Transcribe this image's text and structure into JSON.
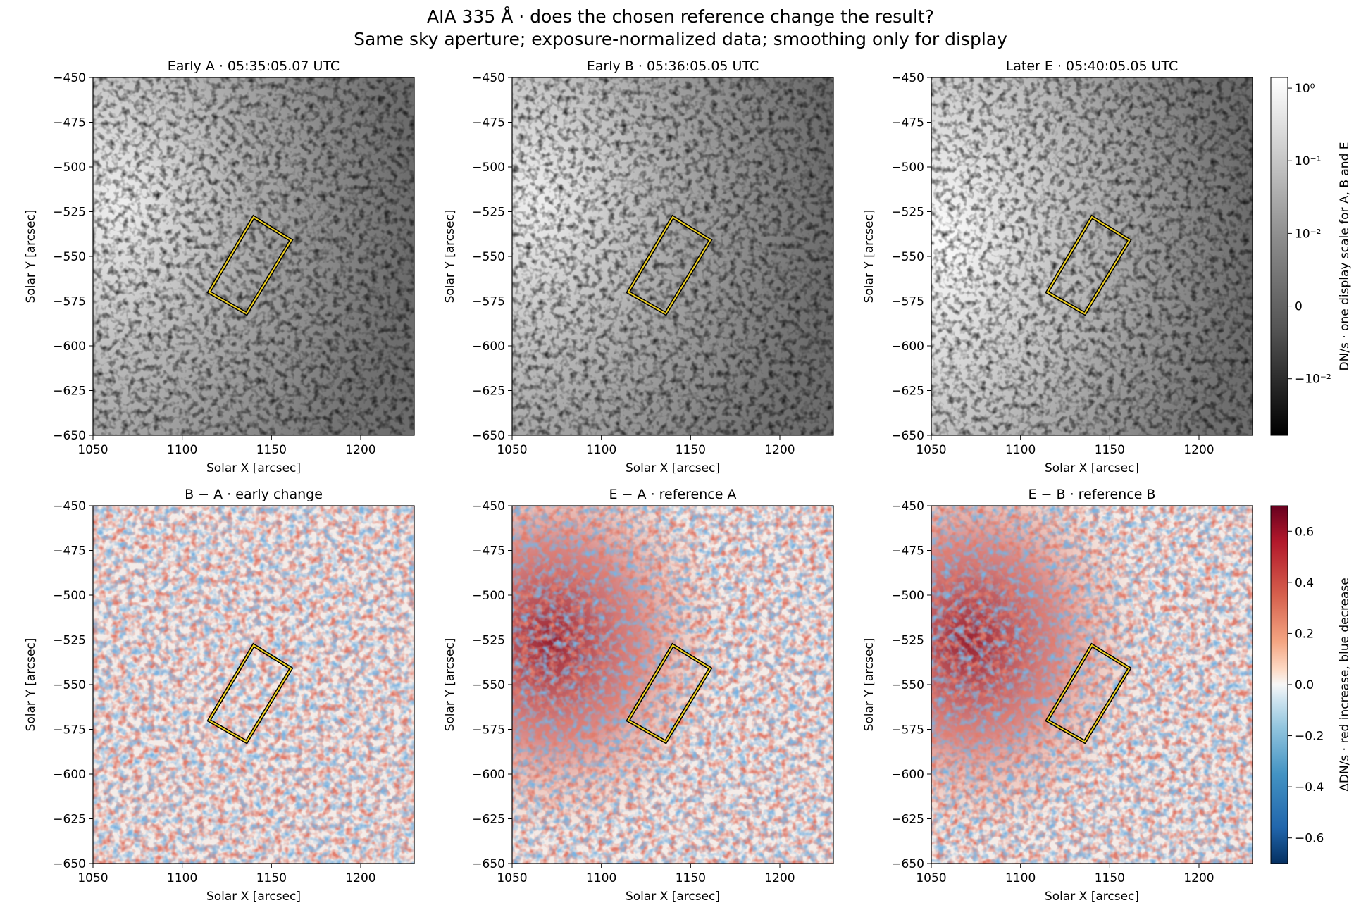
{
  "title_line1": "AIA 335 Å · does the chosen reference change the result?",
  "title_line2": "Same sky aperture; exposure-normalized data; smoothing only for display",
  "chart_data": [
    {
      "type": "heatmap",
      "title": "Early A · 05:35:05.07 UTC",
      "xlabel": "Solar X [arcsec]",
      "ylabel": "Solar Y [arcsec]",
      "xlim": [
        1050,
        1230
      ],
      "ylim": [
        -650,
        -450
      ],
      "xticks": [
        1050,
        1100,
        1150,
        1200
      ],
      "yticks": [
        -450,
        -475,
        -500,
        -525,
        -550,
        -575,
        -600,
        -625,
        -650
      ],
      "colormap": "gray",
      "aperture": [
        [
          1140,
          -528
        ],
        [
          1161,
          -541
        ],
        [
          1136,
          -582
        ],
        [
          1115,
          -570
        ]
      ]
    },
    {
      "type": "heatmap",
      "title": "Early B · 05:36:05.05 UTC",
      "xlabel": "Solar X [arcsec]",
      "ylabel": "Solar Y [arcsec]",
      "xlim": [
        1050,
        1230
      ],
      "ylim": [
        -650,
        -450
      ],
      "xticks": [
        1050,
        1100,
        1150,
        1200
      ],
      "yticks": [
        -450,
        -475,
        -500,
        -525,
        -550,
        -575,
        -600,
        -625,
        -650
      ],
      "colormap": "gray",
      "aperture": [
        [
          1140,
          -528
        ],
        [
          1161,
          -541
        ],
        [
          1136,
          -582
        ],
        [
          1115,
          -570
        ]
      ]
    },
    {
      "type": "heatmap",
      "title": "Later E · 05:40:05.05 UTC",
      "xlabel": "Solar X [arcsec]",
      "ylabel": "Solar Y [arcsec]",
      "xlim": [
        1050,
        1230
      ],
      "ylim": [
        -650,
        -450
      ],
      "xticks": [
        1050,
        1100,
        1150,
        1200
      ],
      "yticks": [
        -450,
        -475,
        -500,
        -525,
        -550,
        -575,
        -600,
        -625,
        -650
      ],
      "colormap": "gray",
      "aperture": [
        [
          1140,
          -528
        ],
        [
          1161,
          -541
        ],
        [
          1136,
          -582
        ],
        [
          1115,
          -570
        ]
      ]
    },
    {
      "type": "heatmap",
      "title": "B − A · early change",
      "xlabel": "Solar X [arcsec]",
      "ylabel": "Solar Y [arcsec]",
      "xlim": [
        1050,
        1230
      ],
      "ylim": [
        -650,
        -450
      ],
      "xticks": [
        1050,
        1100,
        1150,
        1200
      ],
      "yticks": [
        -450,
        -475,
        -500,
        -525,
        -550,
        -575,
        -600,
        -625,
        -650
      ],
      "colormap": "RdBu_r",
      "aperture": [
        [
          1140,
          -528
        ],
        [
          1161,
          -541
        ],
        [
          1136,
          -582
        ],
        [
          1115,
          -570
        ]
      ]
    },
    {
      "type": "heatmap",
      "title": "E − A · reference A",
      "xlabel": "Solar X [arcsec]",
      "ylabel": "Solar Y [arcsec]",
      "xlim": [
        1050,
        1230
      ],
      "ylim": [
        -650,
        -450
      ],
      "xticks": [
        1050,
        1100,
        1150,
        1200
      ],
      "yticks": [
        -450,
        -475,
        -500,
        -525,
        -550,
        -575,
        -600,
        -625,
        -650
      ],
      "colormap": "RdBu_r",
      "aperture": [
        [
          1140,
          -528
        ],
        [
          1161,
          -541
        ],
        [
          1136,
          -582
        ],
        [
          1115,
          -570
        ]
      ]
    },
    {
      "type": "heatmap",
      "title": "E − B · reference B",
      "xlabel": "Solar X [arcsec]",
      "ylabel": "Solar Y [arcsec]",
      "xlim": [
        1050,
        1230
      ],
      "ylim": [
        -650,
        -450
      ],
      "xticks": [
        1050,
        1100,
        1150,
        1200
      ],
      "yticks": [
        -450,
        -475,
        -500,
        -525,
        -550,
        -575,
        -600,
        -625,
        -650
      ],
      "colormap": "RdBu_r",
      "aperture": [
        [
          1140,
          -528
        ],
        [
          1161,
          -541
        ],
        [
          1136,
          -582
        ],
        [
          1115,
          -570
        ]
      ]
    }
  ],
  "colorbars": {
    "top": {
      "label": "DN/s · one display scale for A, B and E",
      "scale": "symlog",
      "ticks": [
        {
          "label": "10⁰",
          "value": 1
        },
        {
          "label": "10⁻¹",
          "value": 0.1
        },
        {
          "label": "10⁻²",
          "value": 0.01
        },
        {
          "label": "0",
          "value": 0
        },
        {
          "label": "−10⁻²",
          "value": -0.01
        }
      ]
    },
    "bottom": {
      "label": "ΔDN/s · red increase, blue decrease",
      "range": [
        -0.7,
        0.7
      ],
      "ticks": [
        {
          "label": "0.6",
          "value": 0.6
        },
        {
          "label": "0.4",
          "value": 0.4
        },
        {
          "label": "0.2",
          "value": 0.2
        },
        {
          "label": "0.0",
          "value": 0.0
        },
        {
          "label": "−0.2",
          "value": -0.2
        },
        {
          "label": "−0.4",
          "value": -0.4
        },
        {
          "label": "−0.6",
          "value": -0.6
        }
      ]
    }
  },
  "colors": {
    "aperture_outer": "#000000",
    "aperture_inner": "#f2d21b",
    "diff_positive": "#67001f",
    "diff_negative": "#053061"
  }
}
